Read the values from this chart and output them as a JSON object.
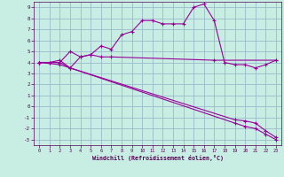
{
  "xlabel": "Windchill (Refroidissement éolien,°C)",
  "bg_color": "#c8eee4",
  "grid_color": "#99bbcc",
  "line_color": "#990099",
  "xlim": [
    -0.5,
    23.5
  ],
  "ylim": [
    -3.5,
    9.5
  ],
  "xticks": [
    0,
    1,
    2,
    3,
    4,
    5,
    6,
    7,
    8,
    9,
    10,
    11,
    12,
    13,
    14,
    15,
    16,
    17,
    18,
    19,
    20,
    21,
    22,
    23
  ],
  "yticks": [
    -3,
    -2,
    -1,
    0,
    1,
    2,
    3,
    4,
    5,
    6,
    7,
    8,
    9
  ],
  "series1_x": [
    0,
    1,
    2,
    3,
    4,
    5,
    6,
    7,
    8,
    9,
    10,
    11,
    12,
    13,
    14,
    15,
    16,
    17,
    18,
    19,
    20,
    21,
    22,
    23
  ],
  "series1_y": [
    4.0,
    4.0,
    4.0,
    5.0,
    4.5,
    4.7,
    5.5,
    5.2,
    6.5,
    6.8,
    7.8,
    7.8,
    7.5,
    7.5,
    7.5,
    9.0,
    9.3,
    7.8,
    4.0,
    3.8,
    3.8,
    3.5,
    3.8,
    4.2
  ],
  "series2_x": [
    0,
    1,
    2,
    3,
    4,
    5,
    6,
    7,
    17,
    23
  ],
  "series2_y": [
    4.0,
    4.0,
    4.2,
    3.5,
    4.5,
    4.7,
    4.5,
    4.5,
    4.2,
    4.2
  ],
  "series3_x": [
    0,
    2,
    3,
    19,
    20,
    21,
    22,
    23
  ],
  "series3_y": [
    4.0,
    4.0,
    3.5,
    -1.2,
    -1.3,
    -1.5,
    -2.2,
    -2.8
  ],
  "series4_x": [
    0,
    2,
    3,
    19,
    20,
    21,
    22,
    23
  ],
  "series4_y": [
    4.0,
    3.8,
    3.5,
    -1.5,
    -1.8,
    -2.0,
    -2.5,
    -3.0
  ]
}
